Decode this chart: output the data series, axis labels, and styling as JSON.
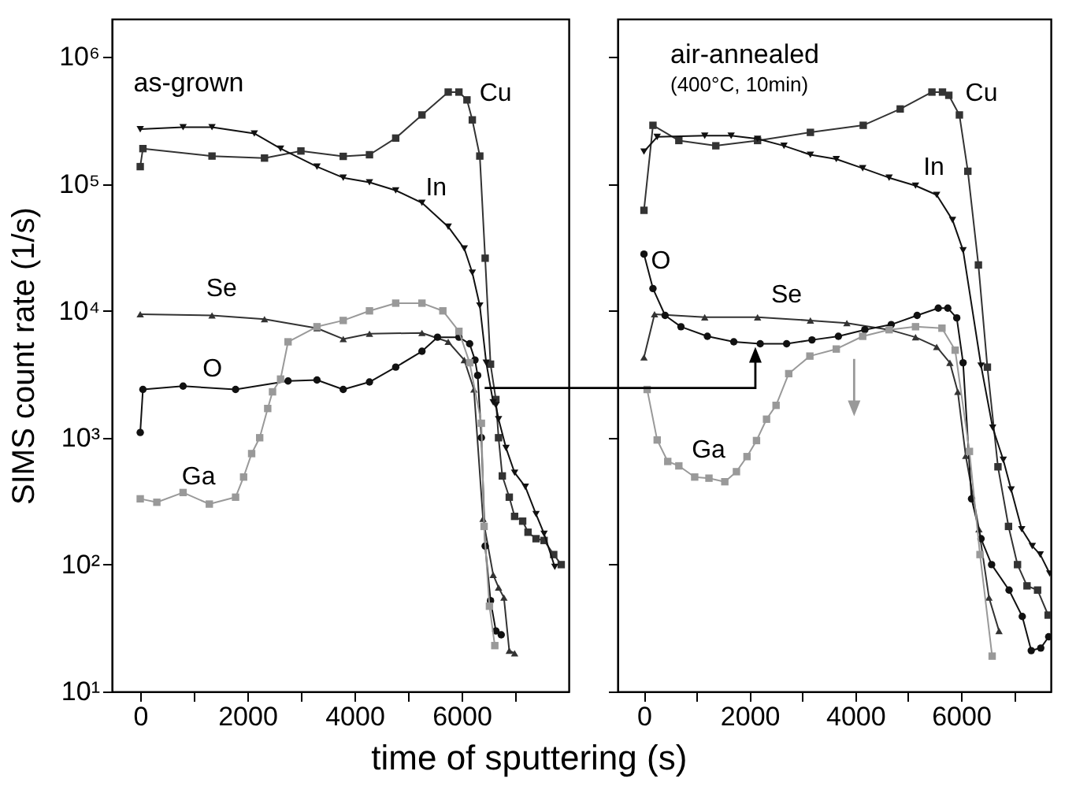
{
  "chart_data": [
    {
      "type": "line",
      "title": "as-grown",
      "ylabel": "SIMS count rate (1/s)",
      "xlabel": "time of sputtering (s)",
      "log": true,
      "xlim": [
        -530,
        8000
      ],
      "ylim": [
        10,
        2000000
      ],
      "xticks": [
        0,
        {
          "value": 1000,
          "label": null
        },
        2000,
        {
          "value": 3000,
          "label": null
        },
        4000,
        {
          "value": 5000,
          "label": null
        },
        6000,
        {
          "value": 7000,
          "label": null
        }
      ],
      "yticks": [
        {
          "value": 10,
          "label": "10¹"
        },
        {
          "value": 100,
          "label": "10²"
        },
        {
          "value": 1000,
          "label": "10³"
        },
        {
          "value": 10000,
          "label": "10⁴"
        },
        {
          "value": 100000,
          "label": "10⁵"
        },
        {
          "value": 1000000,
          "label": "10⁶"
        }
      ],
      "series": [
        {
          "name": "Cu",
          "color": "#333333",
          "marker": "square",
          "x": [
            0,
            50,
            1340,
            2320,
            3000,
            3790,
            4280,
            4770,
            5260,
            5750,
            5950,
            6100,
            6200,
            6340,
            6440,
            6540,
            6640,
            6690,
            6760,
            6890,
            6990,
            7140,
            7240,
            7390,
            7540,
            7720,
            7860
          ],
          "values": [
            137000,
            190000,
            166000,
            160000,
            182000,
            165000,
            170000,
            230000,
            350000,
            530000,
            530000,
            460000,
            320000,
            166000,
            26000,
            3800,
            2000,
            1000,
            500,
            340,
            240,
            220,
            180,
            160,
            155,
            120,
            100
          ]
        },
        {
          "name": "In",
          "color": "#111111",
          "marker": "triangle-down",
          "x": [
            0,
            800,
            1340,
            2130,
            2620,
            3300,
            3790,
            4280,
            4770,
            5260,
            5750,
            6050,
            6200,
            6340,
            6460,
            6590,
            6640,
            6690,
            6830,
            6990,
            7190,
            7390,
            7540,
            7740
          ],
          "values": [
            270000,
            280000,
            280000,
            250000,
            190000,
            137000,
            112000,
            103000,
            89000,
            71000,
            46000,
            31000,
            20000,
            11000,
            3900,
            1900,
            1800,
            1400,
            830,
            530,
            410,
            250,
            175,
            96
          ]
        },
        {
          "name": "Se",
          "color": "#333333",
          "marker": "triangle",
          "x": [
            0,
            1340,
            2320,
            3300,
            3790,
            4280,
            5260,
            5750,
            6050,
            6230,
            6400,
            6590,
            6690,
            6790,
            6890,
            6990
          ],
          "values": [
            9400,
            9200,
            8600,
            7300,
            6000,
            6600,
            6700,
            5700,
            4100,
            2400,
            230,
            83,
            66,
            55,
            21,
            20
          ]
        },
        {
          "name": "O",
          "color": "#111111",
          "marker": "circle",
          "x": [
            0,
            50,
            800,
            1780,
            2760,
            3300,
            3790,
            4280,
            4770,
            5260,
            5550,
            5950,
            6150,
            6250,
            6300,
            6370,
            6440,
            6540,
            6640,
            6740
          ],
          "values": [
            1100,
            2400,
            2550,
            2400,
            2800,
            2850,
            2400,
            2750,
            3600,
            4800,
            6200,
            6200,
            5500,
            4100,
            3100,
            1000,
            140,
            52,
            30,
            28
          ]
        },
        {
          "name": "Ga",
          "color": "#999999",
          "marker": "square",
          "x": [
            0,
            310,
            800,
            1290,
            1780,
            1930,
            2080,
            2230,
            2380,
            2470,
            2620,
            2760,
            3300,
            3790,
            4280,
            4770,
            5260,
            5650,
            5950,
            6150,
            6370,
            6420,
            6520,
            6620
          ],
          "values": [
            330,
            310,
            370,
            300,
            340,
            490,
            750,
            1000,
            1700,
            2300,
            2900,
            5700,
            7500,
            8400,
            10000,
            11500,
            11500,
            10000,
            6900,
            3900,
            1300,
            200,
            47,
            23
          ]
        }
      ]
    },
    {
      "type": "line",
      "title": "air-annealed",
      "subtitle": "(400°C, 10min)",
      "log": true,
      "tick_labels": "x",
      "xlim": [
        -500,
        7700
      ],
      "ylim": [
        10,
        2000000
      ],
      "xticks": [
        0,
        {
          "value": 1000,
          "label": null
        },
        2000,
        {
          "value": 3000,
          "label": null
        },
        4000,
        {
          "value": 5000,
          "label": null
        },
        6000,
        {
          "value": 7000,
          "label": null
        }
      ],
      "yticks": [
        {
          "value": 10,
          "label": null
        },
        {
          "value": 100,
          "label": null
        },
        {
          "value": 1000,
          "label": null
        },
        {
          "value": 10000,
          "label": null
        },
        {
          "value": 100000,
          "label": null
        },
        {
          "value": 1000000,
          "label": null
        }
      ],
      "series": [
        {
          "name": "Cu",
          "color": "#333333",
          "marker": "square",
          "x": [
            0,
            170,
            660,
            1360,
            2150,
            3150,
            4150,
            4850,
            5450,
            5650,
            5770,
            5970,
            6130,
            6330,
            6500,
            6700,
            6900,
            7070,
            7250,
            7450,
            7650
          ],
          "values": [
            62000,
            290000,
            220000,
            200000,
            220000,
            255000,
            290000,
            390000,
            530000,
            530000,
            500000,
            350000,
            126000,
            23000,
            3600,
            590,
            200,
            100,
            68,
            63,
            40
          ]
        },
        {
          "name": "In",
          "color": "#111111",
          "marker": "triangle-down",
          "x": [
            0,
            250,
            1150,
            1650,
            2150,
            2650,
            3150,
            3640,
            4140,
            4640,
            5140,
            5540,
            5840,
            6040,
            6380,
            6600,
            6800,
            6950,
            7150,
            7350,
            7500,
            7680
          ],
          "values": [
            180000,
            235000,
            240000,
            240000,
            227000,
            200000,
            170000,
            157000,
            133000,
            112000,
            97000,
            82000,
            52000,
            30000,
            3700,
            1200,
            670,
            390,
            190,
            140,
            120,
            85
          ]
        },
        {
          "name": "Se",
          "color": "#333333",
          "marker": "triangle",
          "x": [
            0,
            200,
            1150,
            2150,
            3150,
            3840,
            4640,
            5140,
            5540,
            5790,
            5940,
            6090,
            6340,
            6530,
            6720
          ],
          "values": [
            4300,
            9400,
            8900,
            8900,
            8400,
            8000,
            7100,
            6200,
            5200,
            3900,
            2300,
            720,
            190,
            55,
            30
          ]
        },
        {
          "name": "O",
          "color": "#111111",
          "marker": "circle",
          "x": [
            0,
            170,
            400,
            700,
            1200,
            1700,
            2200,
            2700,
            3180,
            3680,
            4180,
            4680,
            5170,
            5570,
            5750,
            5920,
            6040,
            6200,
            6380,
            6580,
            6910,
            7160,
            7330,
            7510,
            7660
          ],
          "values": [
            28000,
            15000,
            9200,
            7500,
            6300,
            5700,
            5500,
            5500,
            5900,
            6300,
            7100,
            7800,
            9200,
            10500,
            10500,
            8800,
            3900,
            330,
            160,
            100,
            63,
            39,
            21,
            22,
            27
          ]
        },
        {
          "name": "Ga",
          "color": "#999999",
          "marker": "square",
          "x": [
            60,
            250,
            450,
            660,
            960,
            1230,
            1530,
            1750,
            1950,
            2130,
            2320,
            2500,
            2740,
            3140,
            3640,
            4140,
            4640,
            5140,
            5640,
            5890,
            6160,
            6360,
            6590
          ],
          "values": [
            2400,
            960,
            650,
            600,
            490,
            480,
            450,
            540,
            710,
            950,
            1400,
            1800,
            3200,
            4400,
            5000,
            6300,
            7100,
            7500,
            7300,
            4900,
            780,
            120,
            19
          ]
        }
      ]
    }
  ]
}
